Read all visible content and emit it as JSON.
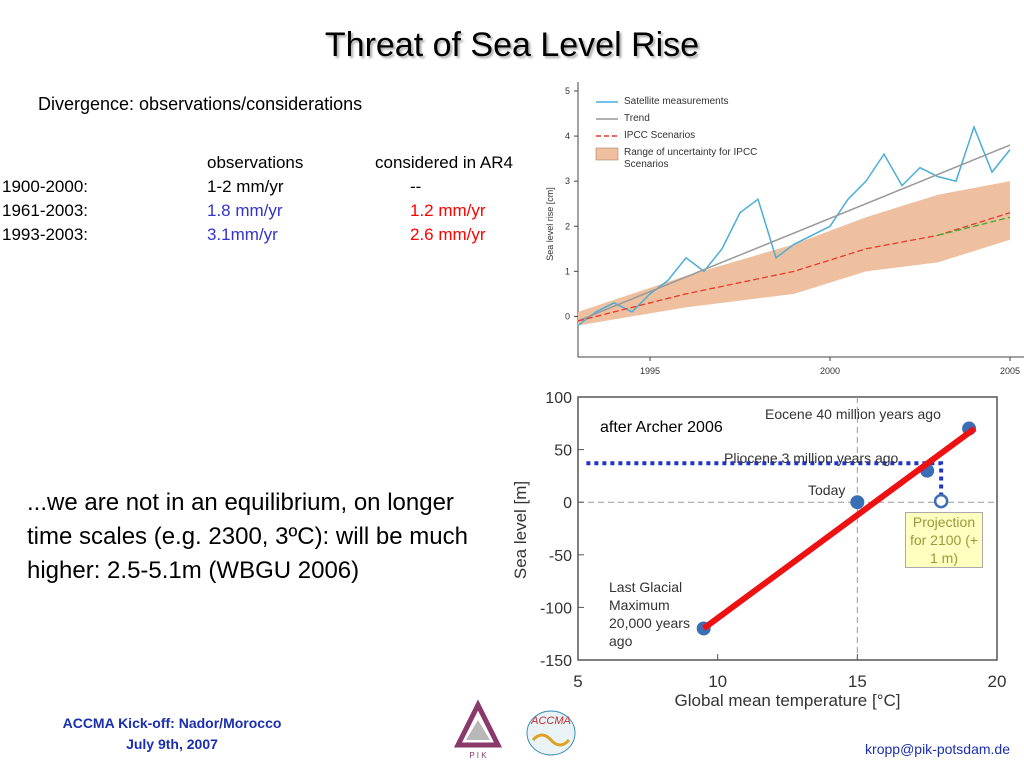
{
  "title": "Threat of Sea Level Rise",
  "subtitle": "Divergence: observations/considerations",
  "table": {
    "header": [
      "observations",
      "considered in AR4"
    ],
    "rows": [
      [
        "1900-2000:",
        "1-2 mm/yr",
        "--"
      ],
      [
        "1961-2003:",
        "1.8 mm/yr",
        "1.2 mm/yr"
      ],
      [
        "1993-2003:",
        "3.1mm/yr",
        "2.6 mm/yr"
      ]
    ]
  },
  "body": "...we are not in an equilibrium, on longer  time scales (e.g. 2300, 3ºC): will be much higher: 2.5-5.1m (WBGU 2006)",
  "footer": {
    "event": "ACCMA Kick-off: Nador/Morocco",
    "date": "July 9th, 2007",
    "email": "kropp@pik-potsdam.de"
  },
  "logos": [
    "P I K",
    "ACCMA"
  ],
  "chart_data": [
    {
      "type": "line",
      "ylabel": "Sea level rise [cm]",
      "xlim": [
        1993,
        2005
      ],
      "ylim": [
        -0.9,
        5
      ],
      "xticks": [
        1995,
        2000,
        2005
      ],
      "yticks": [
        0,
        1,
        2,
        3,
        4,
        5
      ],
      "series": [
        {
          "name": "Satellite measurements",
          "color": "#4aaed8",
          "x": [
            1993,
            1993.5,
            1994,
            1994.5,
            1995,
            1995.5,
            1996,
            1996.5,
            1997,
            1997.5,
            1998,
            1998.5,
            1999,
            1999.5,
            2000,
            2000.5,
            2001,
            2001.5,
            2002,
            2002.5,
            2003,
            2003.5,
            2004,
            2004.5,
            2005
          ],
          "values": [
            -0.2,
            0.1,
            0.3,
            0.1,
            0.5,
            0.8,
            1.3,
            1.0,
            1.5,
            2.3,
            2.6,
            1.3,
            1.6,
            1.8,
            2.0,
            2.6,
            3.0,
            3.6,
            2.9,
            3.3,
            3.1,
            3.0,
            4.2,
            3.2,
            3.7
          ]
        },
        {
          "name": "Trend",
          "color": "#999999",
          "x": [
            1993,
            2005
          ],
          "values": [
            -0.1,
            3.8
          ]
        },
        {
          "name": "IPCC Scenarios",
          "color": "#e83a2a",
          "dash": true,
          "x": [
            1993,
            1996,
            1999,
            2001,
            2003,
            2005
          ],
          "values": [
            -0.1,
            0.5,
            1.0,
            1.5,
            1.8,
            2.3
          ]
        },
        {
          "name": "Range of uncertainty for IPCC Scenarios",
          "color": "#eec0a0",
          "x": [
            1993,
            1996,
            1999,
            2001,
            2003,
            2005
          ],
          "lower": [
            -0.2,
            0.2,
            0.5,
            1.0,
            1.2,
            1.7
          ],
          "upper": [
            0.1,
            0.9,
            1.6,
            2.2,
            2.7,
            3.0
          ]
        },
        {
          "color": "#44aa33",
          "dash": true,
          "x": [
            2003,
            2005
          ],
          "values": [
            1.8,
            2.2
          ]
        }
      ]
    },
    {
      "type": "scatter",
      "xlabel": "Global mean temperature [°C]",
      "ylabel": "Sea level [m]",
      "xlim": [
        5,
        20
      ],
      "ylim": [
        -150,
        100
      ],
      "xticks": [
        5,
        10,
        15,
        20
      ],
      "yticks": [
        -150,
        -100,
        -50,
        0,
        50,
        100
      ],
      "ref_x": 15,
      "ref_y": 0,
      "annotation": "after Archer 2006",
      "fit": {
        "color": "#ee1111",
        "x": [
          9.5,
          19.2
        ],
        "values": [
          -120,
          70
        ]
      },
      "guide": {
        "color": "#2233cc",
        "x": [
          5.3,
          18,
          18
        ],
        "values": [
          37,
          37,
          3
        ]
      },
      "points": {
        "color": "#3a6fb5",
        "x": [
          9.5,
          15,
          17.5,
          19
        ],
        "values": [
          -120,
          0,
          30,
          70
        ],
        "labels": [
          "Last Glacial Maximum 20,000 years ago",
          "Today",
          "Pliocene 3 million years ago",
          "Eocene 40 million years ago"
        ]
      },
      "projection": {
        "color": "#3a6fb5",
        "x": [
          18
        ],
        "values": [
          1
        ],
        "label": "Projection for 2100 (+ 1 m)"
      }
    }
  ]
}
